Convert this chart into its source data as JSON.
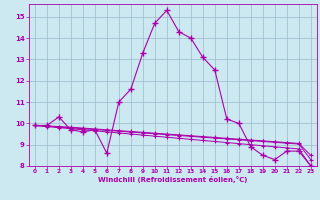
{
  "xlabel": "Windchill (Refroidissement éolien,°C)",
  "bg_color": "#cce8f0",
  "line_color": "#aa00aa",
  "grid_color": "#99bbcc",
  "x_values": [
    0,
    1,
    2,
    3,
    4,
    5,
    6,
    7,
    8,
    9,
    10,
    11,
    12,
    13,
    14,
    15,
    16,
    17,
    18,
    19,
    20,
    21,
    22,
    23
  ],
  "series1": [
    9.9,
    9.9,
    10.3,
    9.7,
    9.6,
    9.7,
    8.6,
    11.0,
    11.6,
    13.3,
    14.7,
    15.3,
    14.3,
    14.0,
    13.1,
    12.5,
    10.2,
    10.0,
    8.9,
    8.5,
    8.3,
    8.7,
    8.7,
    8.0
  ],
  "series2": [
    9.9,
    9.85,
    9.8,
    9.75,
    9.7,
    9.65,
    9.6,
    9.55,
    9.5,
    9.45,
    9.4,
    9.35,
    9.3,
    9.25,
    9.2,
    9.15,
    9.1,
    9.05,
    9.0,
    8.95,
    8.9,
    8.85,
    8.8,
    8.0
  ],
  "series3": [
    9.9,
    9.88,
    9.85,
    9.82,
    9.78,
    9.74,
    9.7,
    9.66,
    9.62,
    9.58,
    9.54,
    9.5,
    9.46,
    9.42,
    9.38,
    9.34,
    9.3,
    9.26,
    9.22,
    9.18,
    9.14,
    9.1,
    9.06,
    8.5
  ],
  "series4": [
    9.9,
    9.87,
    9.83,
    9.79,
    9.75,
    9.71,
    9.67,
    9.63,
    9.59,
    9.55,
    9.51,
    9.47,
    9.43,
    9.39,
    9.35,
    9.31,
    9.27,
    9.23,
    9.19,
    9.15,
    9.11,
    9.07,
    9.03,
    8.3
  ],
  "ylim": [
    8,
    15.6
  ],
  "xlim_min": -0.5,
  "xlim_max": 23.5,
  "yticks": [
    8,
    9,
    10,
    11,
    12,
    13,
    14,
    15
  ],
  "xticks": [
    0,
    1,
    2,
    3,
    4,
    5,
    6,
    7,
    8,
    9,
    10,
    11,
    12,
    13,
    14,
    15,
    16,
    17,
    18,
    19,
    20,
    21,
    22,
    23
  ]
}
